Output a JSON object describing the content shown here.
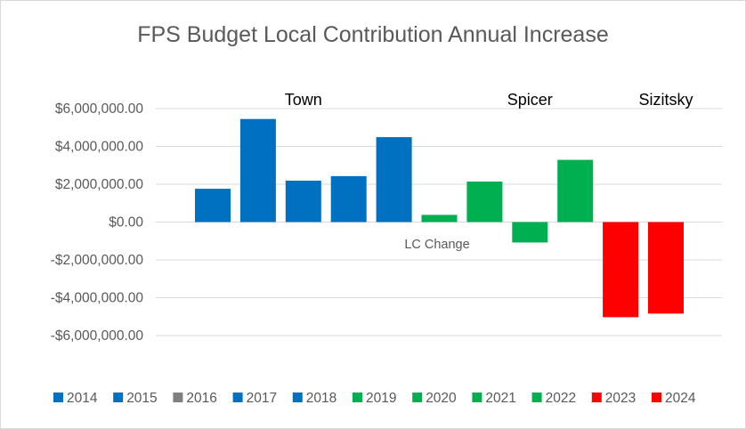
{
  "chart_data": {
    "type": "bar",
    "title": "FPS Budget Local Contribution Annual Increase",
    "xlabel": "",
    "ylabel": "",
    "ylim": [
      -6000000,
      6000000
    ],
    "yticks": [
      6000000,
      4000000,
      2000000,
      0,
      -2000000,
      -4000000,
      -6000000
    ],
    "ytick_labels": [
      "$6,000,000.00",
      "$4,000,000.00",
      "$2,000,000.00",
      "$0.00",
      "-$2,000,000.00",
      "-$4,000,000.00",
      "-$6,000,000.00"
    ],
    "grid": true,
    "category": "LC Change",
    "series": [
      {
        "name": "2014",
        "value": 1760000,
        "color": "#0070C0",
        "legend_color": "#0070C0"
      },
      {
        "name": "2015",
        "value": 5450000,
        "color": "#0070C0",
        "legend_color": "#0070C0"
      },
      {
        "name": "2016",
        "value": 2190000,
        "color": "#0070C0",
        "legend_color": "#7F7F7F"
      },
      {
        "name": "2017",
        "value": 2430000,
        "color": "#0070C0",
        "legend_color": "#0070C0"
      },
      {
        "name": "2018",
        "value": 4490000,
        "color": "#0070C0",
        "legend_color": "#0070C0"
      },
      {
        "name": "2019",
        "value": 380000,
        "color": "#00B050",
        "legend_color": "#00B050"
      },
      {
        "name": "2020",
        "value": 2140000,
        "color": "#00B050",
        "legend_color": "#00B050"
      },
      {
        "name": "2021",
        "value": -1080000,
        "color": "#00B050",
        "legend_color": "#00B050"
      },
      {
        "name": "2022",
        "value": 3290000,
        "color": "#00B050",
        "legend_color": "#00B050"
      },
      {
        "name": "2023",
        "value": -5030000,
        "color": "#FF0000",
        "legend_color": "#FF0000"
      },
      {
        "name": "2024",
        "value": -4840000,
        "color": "#FF0000",
        "legend_color": "#FF0000"
      }
    ],
    "annotations": [
      {
        "text": "Town",
        "over_series": "2016"
      },
      {
        "text": "Spicer",
        "over_series": "2021"
      },
      {
        "text": "Sizitsky",
        "over_series": "2024"
      }
    ],
    "legend_position": "bottom"
  }
}
